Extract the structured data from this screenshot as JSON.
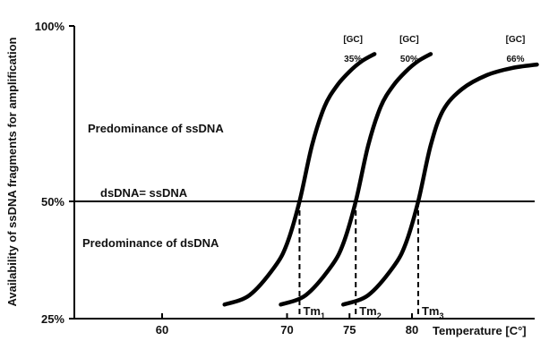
{
  "chart_data": {
    "type": "line",
    "title": "",
    "xlabel": "Temperature [C°]",
    "ylabel": "Availability of ssDNA fragments for amplification",
    "x_ticks": [
      "60",
      "70",
      "75",
      "80"
    ],
    "x_tick_values": [
      60,
      70,
      75,
      80
    ],
    "y_ticks": [
      "100%",
      "50%",
      "25%"
    ],
    "y_tick_values": [
      100,
      50,
      25
    ],
    "xlim": [
      54,
      96
    ],
    "ylim": [
      25,
      100
    ],
    "grid": false,
    "reference_line": {
      "y": 50,
      "label": "dsDNA= ssDNA"
    },
    "annotations": {
      "above": "Predominance of ssDNA",
      "below": "Predominance of dsDNA"
    },
    "series": [
      {
        "gc_label": "[GC]",
        "gc_value": "35%",
        "tm_label": "Tm",
        "tm_sub": "1",
        "tm": 71,
        "points": [
          [
            65,
            28
          ],
          [
            67,
            30
          ],
          [
            69,
            36
          ],
          [
            70,
            41
          ],
          [
            71,
            50
          ],
          [
            72,
            66
          ],
          [
            73,
            77
          ],
          [
            74,
            83
          ],
          [
            75,
            87
          ],
          [
            76,
            90
          ],
          [
            77,
            92
          ]
        ]
      },
      {
        "gc_label": "[GC]",
        "gc_value": "50%",
        "tm_label": "Tm",
        "tm_sub": "2",
        "tm": 75.5,
        "points": [
          [
            69.5,
            28
          ],
          [
            71.5,
            30
          ],
          [
            73.5,
            36
          ],
          [
            74.5,
            41
          ],
          [
            75.5,
            50
          ],
          [
            76.5,
            66
          ],
          [
            77.5,
            77
          ],
          [
            78.5,
            83
          ],
          [
            79.5,
            87
          ],
          [
            80.5,
            90
          ],
          [
            81.5,
            92
          ]
        ]
      },
      {
        "gc_label": "[GC]",
        "gc_value": "66%",
        "tm_label": "Tm",
        "tm_sub": "3",
        "tm": 80.5,
        "points": [
          [
            74.5,
            28
          ],
          [
            76.5,
            30
          ],
          [
            78.5,
            36
          ],
          [
            79.5,
            41
          ],
          [
            80.5,
            50
          ],
          [
            81.5,
            66
          ],
          [
            82.5,
            76
          ],
          [
            84,
            82
          ],
          [
            86,
            86
          ],
          [
            88,
            88
          ],
          [
            90,
            89
          ]
        ]
      }
    ]
  }
}
